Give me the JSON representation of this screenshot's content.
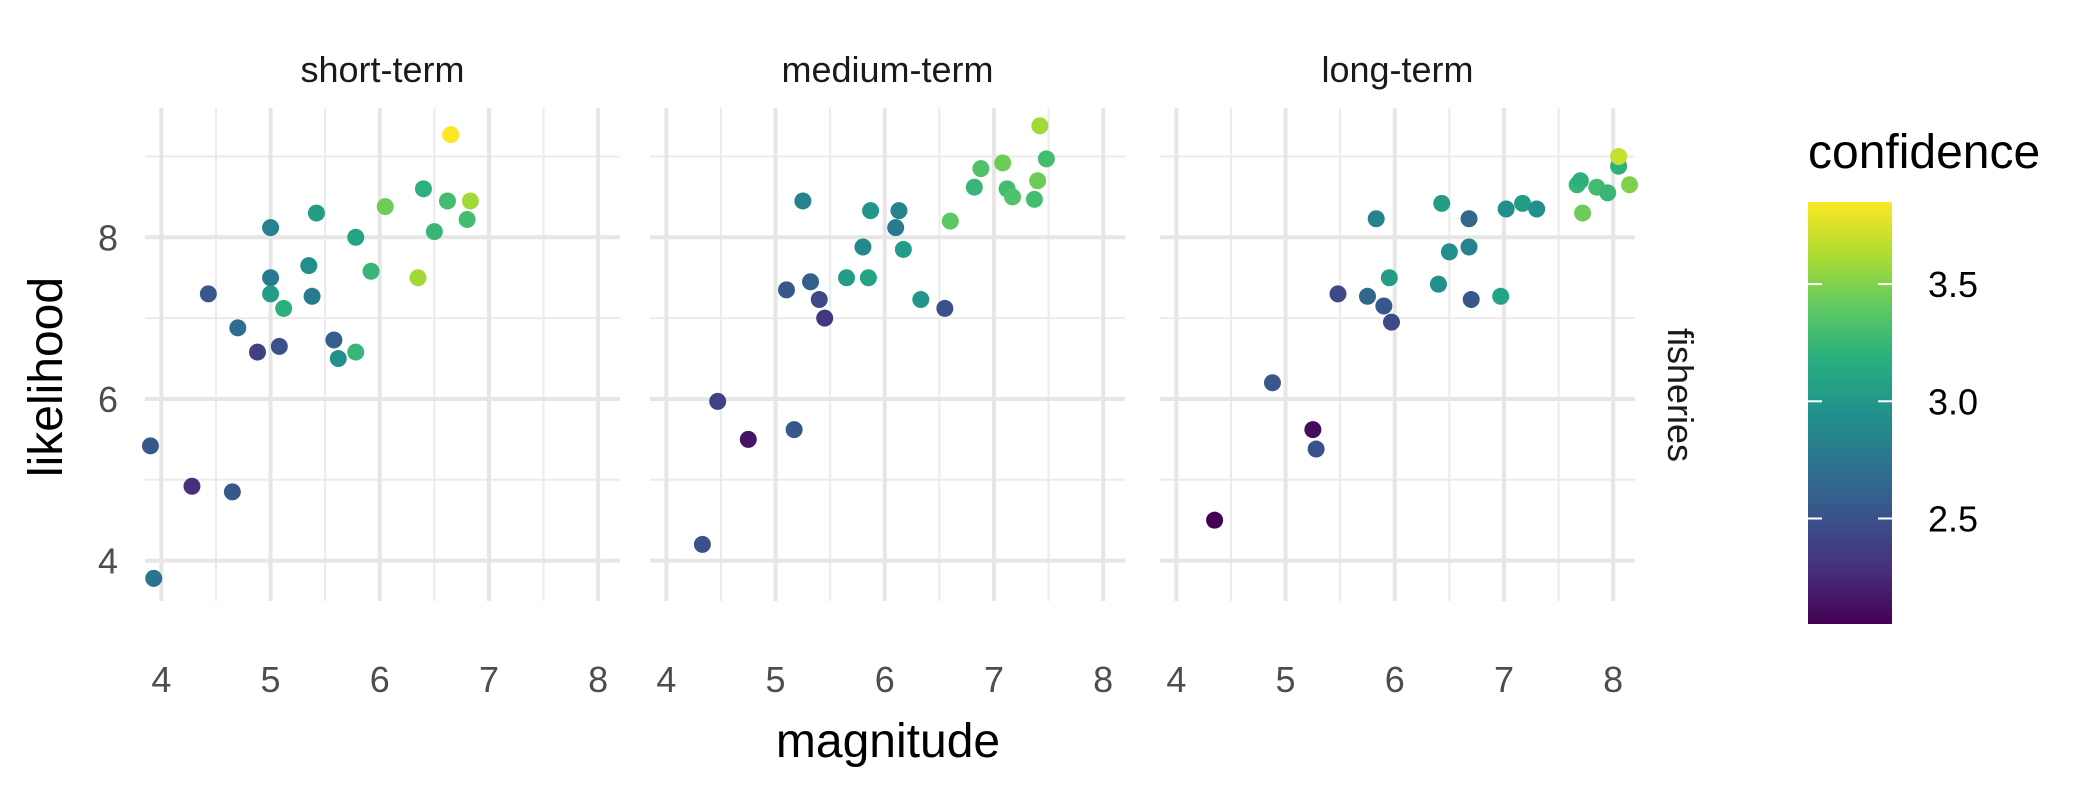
{
  "chart_data": {
    "type": "scatter",
    "xlabel": "magnitude",
    "ylabel": "likelihood",
    "row_facet": "fisheries",
    "xlim": [
      3.85,
      8.2
    ],
    "ylim": [
      3.5,
      9.6
    ],
    "x_ticks": [
      4,
      5,
      6,
      7,
      8
    ],
    "y_ticks": [
      4,
      6,
      8
    ],
    "grid": true,
    "legend": {
      "title": "confidence",
      "placement": "right",
      "min": 2.05,
      "max": 3.85,
      "ticks": [
        2.5,
        3.0,
        3.5
      ],
      "tick_labels": [
        "2.5",
        "3.0",
        "3.5"
      ]
    },
    "panels": [
      {
        "title": "short-term",
        "points": [
          {
            "x": 3.9,
            "y": 5.42,
            "c": 2.55
          },
          {
            "x": 3.93,
            "y": 3.78,
            "c": 2.75
          },
          {
            "x": 4.28,
            "y": 4.92,
            "c": 2.3
          },
          {
            "x": 4.43,
            "y": 7.3,
            "c": 2.55
          },
          {
            "x": 4.65,
            "y": 4.85,
            "c": 2.55
          },
          {
            "x": 4.7,
            "y": 6.88,
            "c": 2.7
          },
          {
            "x": 4.88,
            "y": 6.58,
            "c": 2.4
          },
          {
            "x": 5.0,
            "y": 8.12,
            "c": 2.85
          },
          {
            "x": 5.0,
            "y": 7.5,
            "c": 2.8
          },
          {
            "x": 5.0,
            "y": 7.3,
            "c": 3.05
          },
          {
            "x": 5.08,
            "y": 6.65,
            "c": 2.5
          },
          {
            "x": 5.12,
            "y": 7.12,
            "c": 3.2
          },
          {
            "x": 5.35,
            "y": 7.65,
            "c": 2.95
          },
          {
            "x": 5.38,
            "y": 7.27,
            "c": 2.8
          },
          {
            "x": 5.42,
            "y": 8.3,
            "c": 3.05
          },
          {
            "x": 5.58,
            "y": 6.73,
            "c": 2.6
          },
          {
            "x": 5.62,
            "y": 6.5,
            "c": 2.95
          },
          {
            "x": 5.78,
            "y": 6.58,
            "c": 3.25
          },
          {
            "x": 5.78,
            "y": 8.0,
            "c": 3.1
          },
          {
            "x": 5.92,
            "y": 7.58,
            "c": 3.25
          },
          {
            "x": 6.05,
            "y": 8.38,
            "c": 3.45
          },
          {
            "x": 6.35,
            "y": 7.5,
            "c": 3.6
          },
          {
            "x": 6.4,
            "y": 8.6,
            "c": 3.2
          },
          {
            "x": 6.5,
            "y": 8.07,
            "c": 3.25
          },
          {
            "x": 6.62,
            "y": 8.45,
            "c": 3.3
          },
          {
            "x": 6.65,
            "y": 9.27,
            "c": 3.85
          },
          {
            "x": 6.8,
            "y": 8.22,
            "c": 3.3
          },
          {
            "x": 6.83,
            "y": 8.45,
            "c": 3.6
          }
        ]
      },
      {
        "title": "medium-term",
        "points": [
          {
            "x": 4.33,
            "y": 4.2,
            "c": 2.5
          },
          {
            "x": 4.47,
            "y": 5.97,
            "c": 2.4
          },
          {
            "x": 4.75,
            "y": 5.5,
            "c": 2.15
          },
          {
            "x": 5.1,
            "y": 7.35,
            "c": 2.55
          },
          {
            "x": 5.17,
            "y": 5.62,
            "c": 2.55
          },
          {
            "x": 5.25,
            "y": 8.45,
            "c": 2.85
          },
          {
            "x": 5.32,
            "y": 7.45,
            "c": 2.6
          },
          {
            "x": 5.4,
            "y": 7.23,
            "c": 2.45
          },
          {
            "x": 5.45,
            "y": 7.0,
            "c": 2.35
          },
          {
            "x": 5.65,
            "y": 7.5,
            "c": 3.05
          },
          {
            "x": 5.8,
            "y": 7.88,
            "c": 2.9
          },
          {
            "x": 5.85,
            "y": 7.5,
            "c": 3.1
          },
          {
            "x": 5.87,
            "y": 8.33,
            "c": 3.0
          },
          {
            "x": 6.1,
            "y": 8.12,
            "c": 2.8
          },
          {
            "x": 6.13,
            "y": 8.33,
            "c": 2.85
          },
          {
            "x": 6.17,
            "y": 7.85,
            "c": 3.05
          },
          {
            "x": 6.33,
            "y": 7.23,
            "c": 3.0
          },
          {
            "x": 6.55,
            "y": 7.12,
            "c": 2.5
          },
          {
            "x": 6.6,
            "y": 8.2,
            "c": 3.4
          },
          {
            "x": 6.82,
            "y": 8.62,
            "c": 3.25
          },
          {
            "x": 6.88,
            "y": 8.85,
            "c": 3.35
          },
          {
            "x": 7.08,
            "y": 8.92,
            "c": 3.45
          },
          {
            "x": 7.12,
            "y": 8.6,
            "c": 3.3
          },
          {
            "x": 7.17,
            "y": 8.5,
            "c": 3.35
          },
          {
            "x": 7.37,
            "y": 8.47,
            "c": 3.3
          },
          {
            "x": 7.4,
            "y": 8.7,
            "c": 3.45
          },
          {
            "x": 7.42,
            "y": 9.38,
            "c": 3.6
          },
          {
            "x": 7.48,
            "y": 8.97,
            "c": 3.3
          }
        ]
      },
      {
        "title": "long-term",
        "points": [
          {
            "x": 4.35,
            "y": 4.5,
            "c": 2.05
          },
          {
            "x": 4.88,
            "y": 6.2,
            "c": 2.55
          },
          {
            "x": 5.25,
            "y": 5.62,
            "c": 2.1
          },
          {
            "x": 5.28,
            "y": 5.38,
            "c": 2.5
          },
          {
            "x": 5.48,
            "y": 7.3,
            "c": 2.45
          },
          {
            "x": 5.75,
            "y": 7.27,
            "c": 2.65
          },
          {
            "x": 5.83,
            "y": 8.23,
            "c": 2.85
          },
          {
            "x": 5.9,
            "y": 7.15,
            "c": 2.55
          },
          {
            "x": 5.95,
            "y": 7.5,
            "c": 3.05
          },
          {
            "x": 5.97,
            "y": 6.95,
            "c": 2.45
          },
          {
            "x": 6.4,
            "y": 7.42,
            "c": 2.95
          },
          {
            "x": 6.43,
            "y": 8.42,
            "c": 3.05
          },
          {
            "x": 6.5,
            "y": 7.82,
            "c": 2.95
          },
          {
            "x": 6.68,
            "y": 7.88,
            "c": 2.85
          },
          {
            "x": 6.68,
            "y": 8.23,
            "c": 2.65
          },
          {
            "x": 6.7,
            "y": 7.23,
            "c": 2.55
          },
          {
            "x": 6.97,
            "y": 7.27,
            "c": 3.1
          },
          {
            "x": 7.02,
            "y": 8.35,
            "c": 2.95
          },
          {
            "x": 7.17,
            "y": 8.42,
            "c": 3.05
          },
          {
            "x": 7.3,
            "y": 8.35,
            "c": 2.95
          },
          {
            "x": 7.67,
            "y": 8.65,
            "c": 3.25
          },
          {
            "x": 7.7,
            "y": 8.7,
            "c": 3.2
          },
          {
            "x": 7.72,
            "y": 8.3,
            "c": 3.45
          },
          {
            "x": 7.85,
            "y": 8.62,
            "c": 3.3
          },
          {
            "x": 7.95,
            "y": 8.55,
            "c": 3.25
          },
          {
            "x": 8.05,
            "y": 8.88,
            "c": 3.2
          },
          {
            "x": 8.05,
            "y": 9.0,
            "c": 3.7
          },
          {
            "x": 8.15,
            "y": 8.65,
            "c": 3.5
          }
        ]
      }
    ]
  }
}
